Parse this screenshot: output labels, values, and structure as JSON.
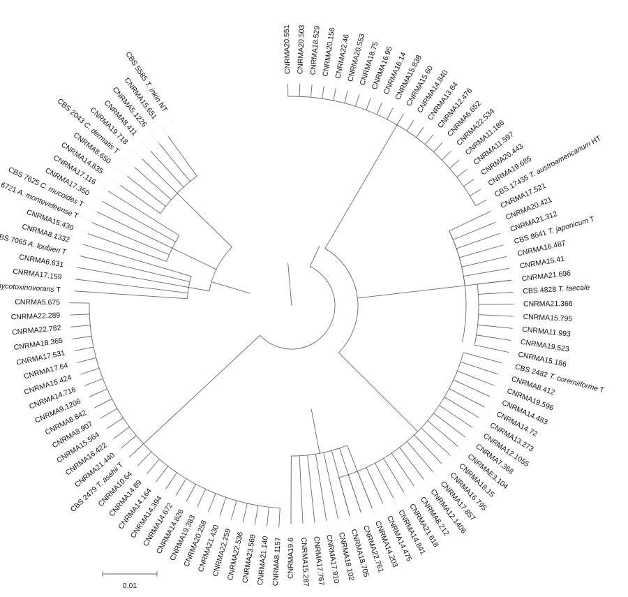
{
  "tree": {
    "scale_bar_label": "0.01",
    "tips": [
      {
        "id": "CNRMA20.551"
      },
      {
        "id": "CNRMA20.503"
      },
      {
        "id": "CNRMA18.529"
      },
      {
        "id": "CNRMA20.156"
      },
      {
        "id": "CNRMA22.46"
      },
      {
        "id": "CNRMA20.553"
      },
      {
        "id": "CNRMA18.75"
      },
      {
        "id": "CNRMA16.95"
      },
      {
        "id": "CNRMA16.14"
      },
      {
        "id": "CNRMA15.838"
      },
      {
        "id": "CNRMA15.60"
      },
      {
        "id": "CNRMA14.840"
      },
      {
        "id": "CNRMA13.84"
      },
      {
        "id": "CNRMA12.476"
      },
      {
        "id": "CNRMA6.652"
      },
      {
        "id": "CNRMA22.534"
      },
      {
        "id": "CNRMA11.186"
      },
      {
        "id": "CNRMA11.597"
      },
      {
        "id": "CNRMA20.443"
      },
      {
        "id": "CNRMA19.685"
      },
      {
        "id": "CBS 17435",
        "species": "T. austroamericanum",
        "suffix": "HT"
      },
      {
        "id": "CNRMA17.521"
      },
      {
        "id": "CNRMA20.421"
      },
      {
        "id": "CNRMA21.312"
      },
      {
        "id": "CBS 8641",
        "species": "T. japonicum",
        "suffix": "T"
      },
      {
        "id": "CNRMA16.487"
      },
      {
        "id": "CNRMA15.41"
      },
      {
        "id": "CNRMA21.696"
      },
      {
        "id": "CBS 4828",
        "species": "T. faecale",
        "suffix": ""
      },
      {
        "id": "CNRMA21.366"
      },
      {
        "id": "CNRMA15.795"
      },
      {
        "id": "CNRMA11.993"
      },
      {
        "id": "CNRMA19.523"
      },
      {
        "id": "CNRMA15.186"
      },
      {
        "id": "CBS 2482",
        "species": "T. coremiiforme",
        "suffix": "T"
      },
      {
        "id": "CNRMA8.412"
      },
      {
        "id": "CNRMA19.596"
      },
      {
        "id": "CNRMA14.483"
      },
      {
        "id": "CNRMA14.72"
      },
      {
        "id": "CNRMA13.273"
      },
      {
        "id": "CNRMA12.1055"
      },
      {
        "id": "CNRMA7.368"
      },
      {
        "id": "CNRMAE3.104"
      },
      {
        "id": "CNRMA18.15"
      },
      {
        "id": "CNRMA16.795"
      },
      {
        "id": "CNRMA17.857"
      },
      {
        "id": "CNRMA12.1406"
      },
      {
        "id": "CNRMA8.212"
      },
      {
        "id": "CNRMA21.618"
      },
      {
        "id": "CNRMA14.841"
      },
      {
        "id": "CNRMA14.475"
      },
      {
        "id": "CNRMA14.203"
      },
      {
        "id": "CNRMA22.761"
      },
      {
        "id": "CNRMA18.705"
      },
      {
        "id": "CNRMA18.102"
      },
      {
        "id": "CNRMA17.910"
      },
      {
        "id": "CNRMA17.767"
      },
      {
        "id": "CNRMA15.287"
      },
      {
        "id": "CNRMA19.6"
      },
      {
        "id": "CNRMA8.1157"
      },
      {
        "id": "CNRMA21.140"
      },
      {
        "id": "CNRMA23.569"
      },
      {
        "id": "CNRMA22.536"
      },
      {
        "id": "CNRMA22.259"
      },
      {
        "id": "CNRMA21.430"
      },
      {
        "id": "CNRMA20.258"
      },
      {
        "id": "CNRMA19.383"
      },
      {
        "id": "CNRMA14.826"
      },
      {
        "id": "CNRMA14.672"
      },
      {
        "id": "CNRMA14.394"
      },
      {
        "id": "CNRMA14.164"
      },
      {
        "id": "CNRMA14.89"
      },
      {
        "id": "CNRMA10.64"
      },
      {
        "id": "CBS 2479",
        "species": "T. asahii",
        "suffix": "T"
      },
      {
        "id": "CNRMA21.440"
      },
      {
        "id": "CNRMA16.422"
      },
      {
        "id": "CNRMA15.564"
      },
      {
        "id": "CNRMA8.907"
      },
      {
        "id": "CNRMA6.842"
      },
      {
        "id": "CNRMA9.1206"
      },
      {
        "id": "CNRMA14.716"
      },
      {
        "id": "CNRMA15.424"
      },
      {
        "id": "CNRMA17.64"
      },
      {
        "id": "CNRMA17.531"
      },
      {
        "id": "CNRMA18.365"
      },
      {
        "id": "CNRMA22.782"
      },
      {
        "id": "CNRMA22.289"
      },
      {
        "id": "CNRMA5.675"
      },
      {
        "id": "CBS 9756",
        "species": "A. mycotoxinovorans",
        "suffix": "T"
      },
      {
        "id": "CNRMA17.159"
      },
      {
        "id": "CNRMA6.631"
      },
      {
        "id": "CBS 7065",
        "species": "A. loubieri",
        "suffix": "T"
      },
      {
        "id": "CNRMA8.1332"
      },
      {
        "id": "CNRMA15.430"
      },
      {
        "id": "CBS 6721",
        "species": "A. montevideense",
        "suffix": "T"
      },
      {
        "id": "CBS 7625",
        "species": "C. mucoides",
        "suffix": "T"
      },
      {
        "id": "CNRMA17.350"
      },
      {
        "id": "CNRMA17.116"
      },
      {
        "id": "CNRMA14.835"
      },
      {
        "id": "CNRMA8.650"
      },
      {
        "id": "CBS 2043",
        "species": "C. dermatis",
        "suffix": "T"
      },
      {
        "id": "CNRMA19.718"
      },
      {
        "id": "CNRMA8.411"
      },
      {
        "id": "CNRMA5.1226"
      },
      {
        "id": "CNRMA15.651"
      },
      {
        "id": "CBS 5585",
        "species": "T. inkin",
        "suffix": "NT"
      }
    ]
  }
}
